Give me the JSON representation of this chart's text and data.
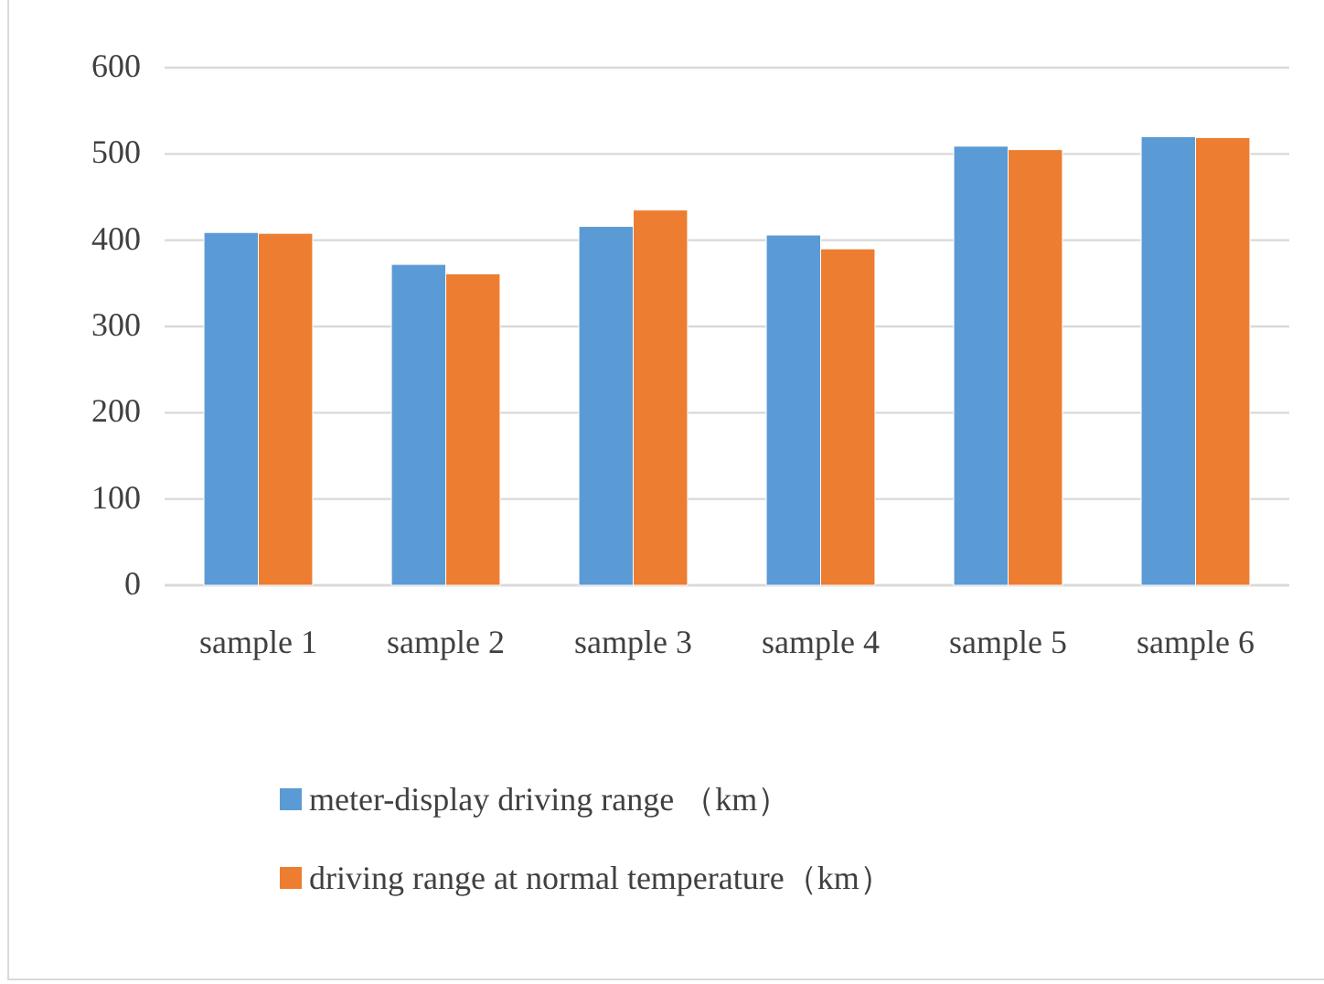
{
  "chart_data": {
    "type": "bar",
    "categories": [
      "sample 1",
      "sample 2",
      "sample 3",
      "sample 4",
      "sample 5",
      "sample 6"
    ],
    "series": [
      {
        "name": "meter-display driving range （km）",
        "color": "#5b9bd5",
        "values": [
          409,
          372,
          416,
          406,
          509,
          520
        ]
      },
      {
        "name": "driving range at normal temperature（km）",
        "color": "#ed7d31",
        "values": [
          408,
          361,
          435,
          390,
          505,
          519
        ]
      }
    ],
    "ylim": [
      0,
      600
    ],
    "yticks": [
      0,
      100,
      200,
      300,
      400,
      500,
      600
    ],
    "grid": "y",
    "legend": "bottom"
  }
}
